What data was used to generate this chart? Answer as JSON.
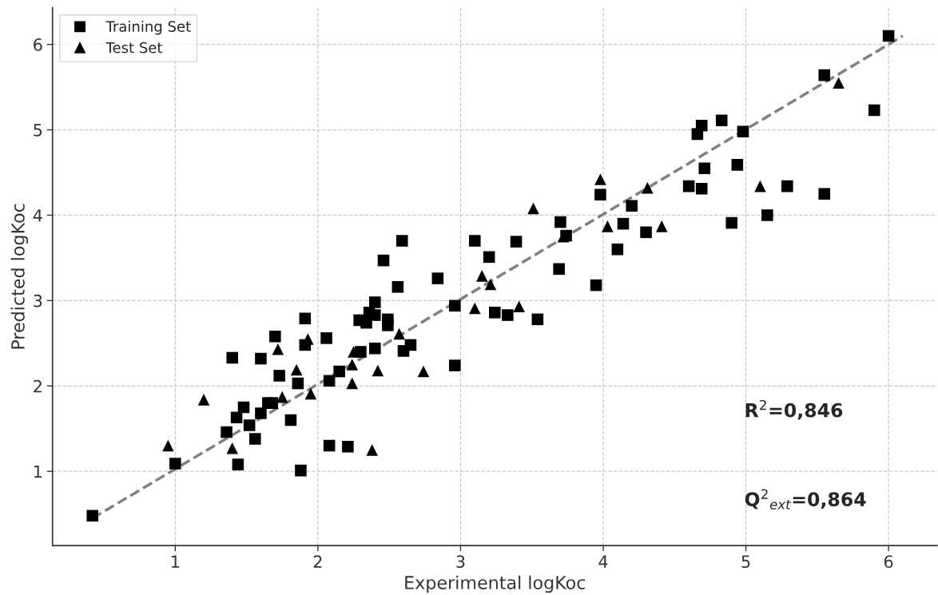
{
  "chart_data": {
    "type": "scatter",
    "xlabel": "Experimental logKoc",
    "ylabel": "Predicted logKoc",
    "xlim": [
      0.14,
      6.34
    ],
    "ylim": [
      0.13,
      6.43
    ],
    "xticks": [
      1,
      2,
      3,
      4,
      5,
      6
    ],
    "yticks": [
      1,
      2,
      3,
      4,
      5,
      6
    ],
    "grid": true,
    "legend": "top left",
    "annotations": [
      "R$^{2}$=0,846",
      "Q$^{2}$$_{ext}$=0,864"
    ],
    "series": [
      {
        "name": "Training Set",
        "marker": "square",
        "color": "#000000",
        "x": [
          0.42,
          1.0,
          1.44,
          1.88,
          2.08,
          2.21,
          1.36,
          1.56,
          1.43,
          1.48,
          1.52,
          1.6,
          1.65,
          1.68,
          1.81,
          1.4,
          1.6,
          1.73,
          1.7,
          1.91,
          1.91,
          1.86,
          2.06,
          2.08,
          2.15,
          2.3,
          2.4,
          2.6,
          2.65,
          2.96,
          2.96,
          2.59,
          2.46,
          2.56,
          2.84,
          2.4,
          2.36,
          2.29,
          2.34,
          2.4,
          2.49,
          2.49,
          3.1,
          3.2,
          3.39,
          3.24,
          3.33,
          3.54,
          3.7,
          3.74,
          3.69,
          3.95,
          3.98,
          6.0,
          5.55,
          5.9,
          4.83,
          4.69,
          4.66,
          4.98,
          4.71,
          4.94,
          4.6,
          4.69,
          5.29,
          5.55,
          5.15,
          4.9,
          4.2,
          4.14,
          4.3,
          4.1
        ],
        "values": [
          0.48,
          1.09,
          1.08,
          1.01,
          1.3,
          1.29,
          1.46,
          1.38,
          1.63,
          1.75,
          1.54,
          1.68,
          1.8,
          1.8,
          1.6,
          2.33,
          2.32,
          2.12,
          2.58,
          2.79,
          2.48,
          2.03,
          2.56,
          2.06,
          2.17,
          2.4,
          2.44,
          2.41,
          2.48,
          2.24,
          2.94,
          3.7,
          3.47,
          3.16,
          3.26,
          2.98,
          2.86,
          2.77,
          2.74,
          2.83,
          2.78,
          2.71,
          3.7,
          3.51,
          3.69,
          2.86,
          2.83,
          2.78,
          3.92,
          3.76,
          3.37,
          3.18,
          4.24,
          6.1,
          5.64,
          5.23,
          5.11,
          5.05,
          4.95,
          4.98,
          4.55,
          4.59,
          4.34,
          4.31,
          4.34,
          4.25,
          4.0,
          3.91,
          4.11,
          3.9,
          3.8,
          3.6
        ]
      },
      {
        "name": "Test Set",
        "marker": "triangle",
        "color": "#000000",
        "x": [
          0.95,
          1.2,
          1.4,
          1.72,
          1.85,
          1.93,
          1.75,
          1.95,
          2.25,
          2.24,
          2.24,
          2.42,
          2.38,
          2.57,
          2.74,
          3.1,
          3.51,
          3.15,
          3.21,
          3.41,
          3.72,
          4.03,
          5.65,
          3.98,
          4.31,
          4.41,
          5.1
        ],
        "values": [
          1.3,
          1.84,
          1.27,
          2.43,
          2.19,
          2.55,
          1.87,
          1.91,
          2.4,
          2.25,
          2.03,
          2.18,
          1.25,
          2.61,
          2.17,
          2.91,
          4.08,
          3.29,
          3.19,
          2.93,
          3.75,
          3.87,
          5.55,
          4.42,
          4.32,
          3.87,
          4.34
        ]
      },
      {
        "type": "line",
        "line_style": "dashed",
        "marker": "none",
        "color": "#808080",
        "x": [
          0.42,
          6.1
        ],
        "values": [
          0.45,
          6.1
        ]
      }
    ]
  }
}
